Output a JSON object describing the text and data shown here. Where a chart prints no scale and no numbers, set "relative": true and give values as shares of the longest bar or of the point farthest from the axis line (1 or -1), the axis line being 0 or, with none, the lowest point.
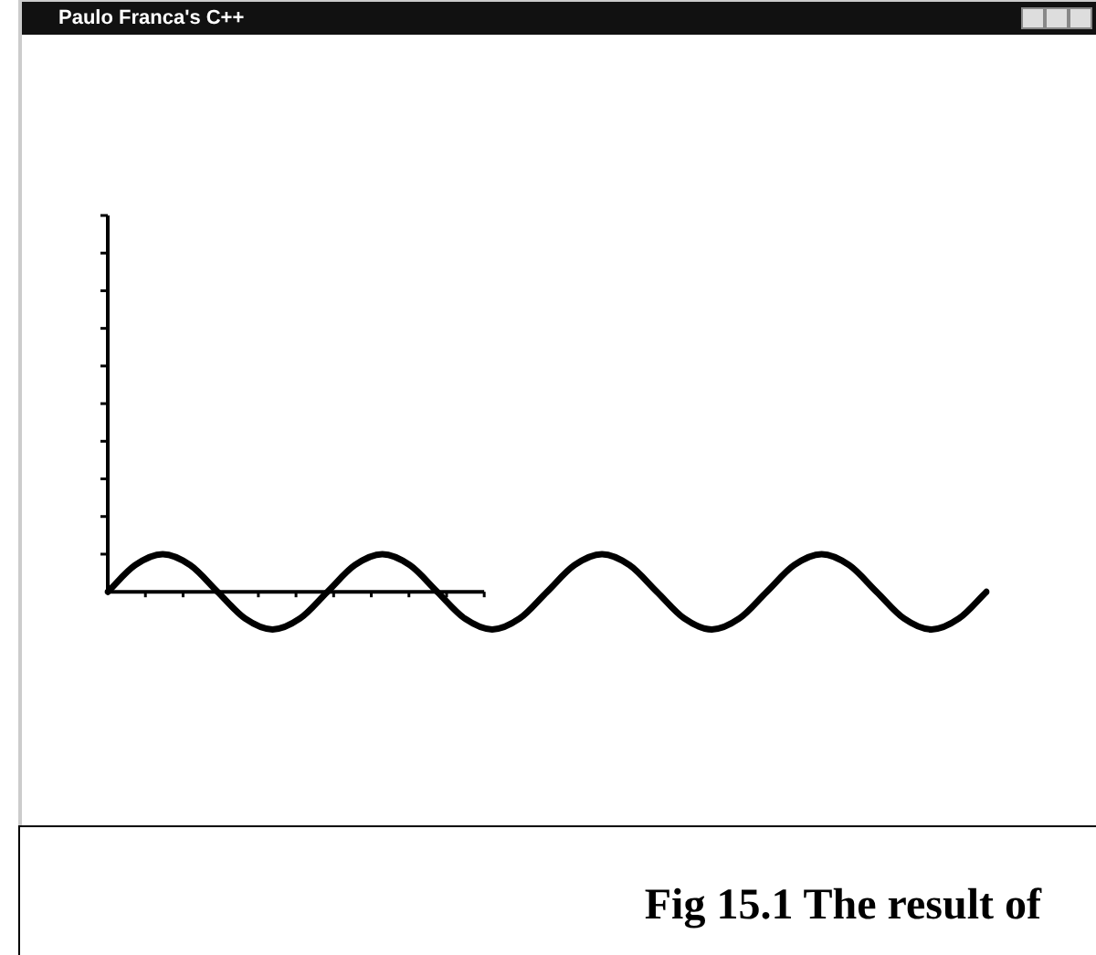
{
  "chart_data": {
    "type": "line",
    "title": "Paulo Franca's C++",
    "relative": true,
    "color": "#000000",
    "marker": "none",
    "line_style": "solid",
    "legend": false,
    "ref_lines": [
      {
        "axis": "y",
        "value": 0
      }
    ],
    "categories": [
      null,
      null,
      null,
      null,
      null,
      null,
      null,
      null,
      null,
      null,
      null,
      null,
      null,
      null,
      null,
      null,
      null,
      null,
      null,
      null,
      null,
      null,
      null,
      null,
      null,
      null,
      null,
      null,
      null,
      null,
      null,
      null,
      null
    ],
    "values": [
      0,
      0.71,
      1,
      0.71,
      0,
      -0.71,
      -1,
      -0.71,
      0,
      0.71,
      1,
      0.71,
      0,
      -0.71,
      -1,
      -0.71,
      0,
      0.71,
      1,
      0.71,
      0,
      -0.71,
      -1,
      -0.71,
      0,
      0.71,
      1,
      0.71,
      0,
      -0.71,
      -1,
      -0.71,
      0
    ],
    "annotations": [
      "Fig 15.1 The result of"
    ]
  }
}
